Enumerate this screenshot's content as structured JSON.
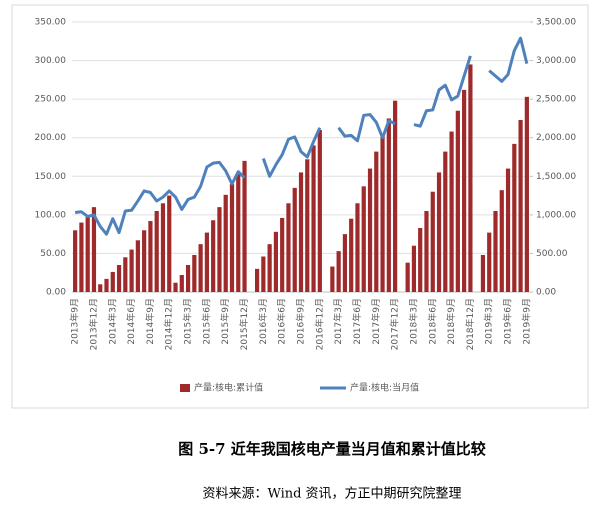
{
  "chart_data": {
    "type": "bar_line",
    "figure_caption": "图 5-7  近年我国核电产量当月值和累计值比较",
    "source_note": "资料来源：Wind 资讯，方正中期研究院整理",
    "categories": [
      "2013年9月",
      null,
      null,
      "2013年12月",
      null,
      null,
      "2014年3月",
      null,
      null,
      "2014年6月",
      null,
      null,
      "2014年9月",
      null,
      null,
      "2014年12月",
      null,
      null,
      "2015年3月",
      null,
      null,
      "2015年6月",
      null,
      null,
      "2015年9月",
      null,
      null,
      "2015年12月",
      null,
      null,
      "2016年3月",
      null,
      null,
      "2016年6月",
      null,
      null,
      "2016年9月",
      null,
      null,
      "2016年12月",
      null,
      null,
      "2017年3月",
      null,
      null,
      "2017年6月",
      null,
      null,
      "2017年9月",
      null,
      null,
      "2017年12月",
      null,
      null,
      "2018年3月",
      null,
      null,
      "2018年6月",
      null,
      null,
      "2018年9月",
      null,
      null,
      "2018年12月",
      null,
      null,
      "2019年3月",
      null,
      null,
      "2019年6月",
      null,
      null,
      "2019年9月"
    ],
    "series": [
      {
        "name": "产量:核电:累计值",
        "color": "#9e2a2b",
        "axis": "y",
        "values": [
          80,
          90,
          97,
          110,
          10,
          17,
          26,
          35,
          45,
          55,
          67,
          80,
          92,
          105,
          115,
          125,
          12,
          22,
          35,
          48,
          62,
          77,
          93,
          110,
          126,
          140,
          155,
          170,
          null,
          30,
          46,
          62,
          78,
          96,
          115,
          135,
          155,
          172,
          190,
          210,
          null,
          33,
          53,
          75,
          95,
          115,
          137,
          160,
          182,
          205,
          225,
          248,
          null,
          38,
          60,
          83,
          105,
          130,
          155,
          182,
          208,
          235,
          262,
          295,
          null,
          48,
          77,
          105,
          132,
          160,
          192,
          223,
          253
        ]
      },
      {
        "name": "产量:核电:当月值",
        "color": "#4f81bd",
        "axis": "y2",
        "values": [
          1030,
          1040,
          980,
          1000,
          850,
          750,
          950,
          770,
          1050,
          1060,
          1180,
          1310,
          1290,
          1180,
          1230,
          1310,
          1230,
          1070,
          1200,
          1230,
          1370,
          1620,
          1670,
          1680,
          1570,
          1400,
          1560,
          1480,
          null,
          null,
          1730,
          1500,
          1650,
          1780,
          1980,
          2010,
          1820,
          1750,
          1950,
          2130,
          null,
          null,
          2130,
          2020,
          2030,
          1960,
          2290,
          2300,
          2200,
          2000,
          2220,
          2180,
          null,
          null,
          2170,
          2150,
          2350,
          2360,
          2620,
          2680,
          2490,
          2540,
          2800,
          3060,
          null,
          null,
          2870,
          2800,
          2730,
          2820,
          3130,
          3290,
          2960
        ]
      }
    ],
    "ylim": [
      0,
      350
    ],
    "yticks": [
      {
        "value": 0,
        "label": "0.00"
      },
      {
        "value": 50,
        "label": "50.00"
      },
      {
        "value": 100,
        "label": "100.00"
      },
      {
        "value": 150,
        "label": "150.00"
      },
      {
        "value": 200,
        "label": "200.00"
      },
      {
        "value": 250,
        "label": "250.00"
      },
      {
        "value": 300,
        "label": "300.00"
      },
      {
        "value": 350,
        "label": "350.00"
      }
    ],
    "y2lim": [
      0,
      3500
    ],
    "y2ticks": [
      {
        "value": 0,
        "label": "0.00"
      },
      {
        "value": 500,
        "label": "500.00"
      },
      {
        "value": 1000,
        "label": "1,000.00"
      },
      {
        "value": 1500,
        "label": "1,500.00"
      },
      {
        "value": 2000,
        "label": "2,000.00"
      },
      {
        "value": 2500,
        "label": "2,500.00"
      },
      {
        "value": 3000,
        "label": "3,000.00"
      },
      {
        "value": 3500,
        "label": "3,500.00"
      }
    ],
    "legend": "bottom"
  }
}
